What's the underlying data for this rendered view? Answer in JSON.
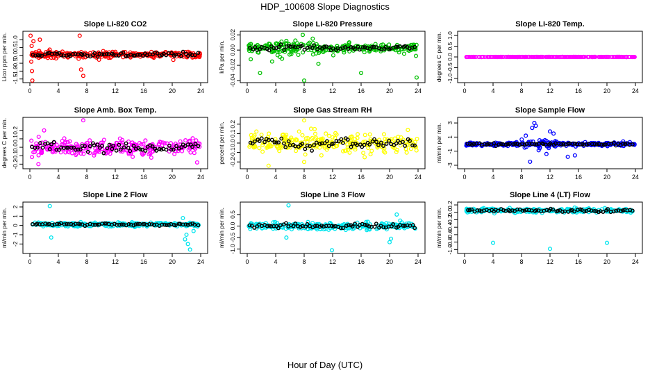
{
  "figure": {
    "title": "HDP_100608  Slope Diagnostics",
    "xlabel": "Hour of Day (UTC)"
  },
  "chart_data": [
    {
      "type": "scatter",
      "title": "Slope Li-820 CO2",
      "ylabel": "Licor ppm per min.",
      "color": "#ff0000",
      "xlim": [
        0,
        24
      ],
      "xticks": [
        0,
        4,
        8,
        12,
        16,
        20,
        24
      ],
      "ylim": [
        -1.6,
        1.4
      ],
      "yticks": [
        -1.5,
        -1.0,
        -0.5,
        0.0,
        0.5,
        1.0
      ],
      "yticklabels": [
        "-1.5",
        "-1.0",
        "-0.5",
        "0.0",
        "0.5",
        "1.0"
      ],
      "spread": 0.16,
      "black_spread": 0.1,
      "center": 0.05,
      "outliers": [
        [
          0.1,
          1.25
        ],
        [
          0.2,
          -0.4
        ],
        [
          0.3,
          -1.0
        ],
        [
          0.35,
          -1.6
        ],
        [
          0.5,
          0.9
        ],
        [
          1.4,
          1.0
        ],
        [
          7.0,
          1.25
        ],
        [
          7.2,
          -0.9
        ],
        [
          7.5,
          -1.3
        ],
        [
          0.25,
          0.6
        ]
      ]
    },
    {
      "type": "scatter",
      "title": "Slope Li-820 Pressure",
      "ylabel": "kPa per min.",
      "color": "#00c000",
      "xlim": [
        0,
        24
      ],
      "xticks": [
        0,
        4,
        8,
        12,
        16,
        20,
        24
      ],
      "ylim": [
        -0.04,
        0.022
      ],
      "yticks": [
        -0.04,
        -0.02,
        0.0,
        0.02
      ],
      "yticklabels": [
        "-0.04",
        "-0.02",
        "0.00",
        "0.02"
      ],
      "spread": 0.005,
      "black_spread": 0.003,
      "center": 0.003,
      "extra_spread_range": [
        4,
        10,
        0.009
      ],
      "outliers": [
        [
          0.5,
          -0.012
        ],
        [
          1.8,
          -0.03
        ],
        [
          3.5,
          -0.015
        ],
        [
          7.8,
          0.02
        ],
        [
          8.0,
          -0.04
        ],
        [
          10.0,
          -0.018
        ],
        [
          16.0,
          -0.03
        ],
        [
          23.8,
          -0.036
        ],
        [
          5.5,
          0.012
        ],
        [
          9.2,
          0.015
        ]
      ]
    },
    {
      "type": "scatter",
      "title": "Slope Li-820 Temp.",
      "ylabel": "degrees C per min.",
      "color": "#ff00ff",
      "xlim": [
        0,
        24
      ],
      "xticks": [
        0,
        4,
        8,
        12,
        16,
        20,
        24
      ],
      "ylim": [
        -1.1,
        1.1
      ],
      "yticks": [
        -1.0,
        -0.5,
        0.0,
        0.5,
        1.0
      ],
      "yticklabels": [
        "-1.0",
        "-0.5",
        "0.0",
        "0.5",
        "1.0"
      ],
      "spread": 0.004,
      "black_spread": 0.0,
      "center": 0.0,
      "outliers": []
    },
    {
      "type": "scatter",
      "title": "Slope Amb. Box Temp.",
      "ylabel": "degrees C per min.",
      "color": "#ff00ff",
      "xlim": [
        0,
        24
      ],
      "xticks": [
        0,
        4,
        8,
        12,
        16,
        20,
        24
      ],
      "ylim": [
        -0.23,
        0.33
      ],
      "yticks": [
        -0.2,
        -0.1,
        0.0,
        0.1,
        0.2
      ],
      "yticklabels": [
        "-0.2",
        "-0.1",
        "0.0",
        "0.1",
        "0.2"
      ],
      "spread": 0.08,
      "black_spread": 0.05,
      "center": 0.0,
      "outliers": [
        [
          7.5,
          0.32
        ],
        [
          1.2,
          -0.2
        ],
        [
          2.0,
          0.2
        ],
        [
          23.5,
          -0.18
        ]
      ]
    },
    {
      "type": "scatter",
      "title": "Slope Gas Stream RH",
      "ylabel": "percent per min.",
      "color": "#ffff00",
      "xlim": [
        0,
        24
      ],
      "xticks": [
        0,
        4,
        8,
        12,
        16,
        20,
        24
      ],
      "ylim": [
        -0.25,
        0.25
      ],
      "yticks": [
        -0.2,
        -0.1,
        0.0,
        0.1,
        0.2
      ],
      "yticklabels": [
        "-0.2",
        "-0.1",
        "0.0",
        "0.1",
        "0.2"
      ],
      "spread": 0.075,
      "black_spread": 0.05,
      "center": 0.0,
      "outliers": [
        [
          3.0,
          -0.24
        ],
        [
          8.0,
          0.24
        ],
        [
          8.0,
          -0.2
        ]
      ]
    },
    {
      "type": "scatter",
      "title": "Slope Sample Flow",
      "ylabel": "ml/min per min.",
      "color": "#0000ff",
      "xlim": [
        0,
        24
      ],
      "xticks": [
        0,
        4,
        8,
        12,
        16,
        20,
        24
      ],
      "ylim": [
        -3.2,
        3.5
      ],
      "yticks": [
        -3,
        -1,
        1,
        3
      ],
      "yticklabels": [
        "-3",
        "-1",
        "1",
        "3"
      ],
      "spread": 0.2,
      "black_spread": 0.12,
      "center": 0.0,
      "extra_spread_range": [
        8,
        13,
        0.5
      ],
      "outliers": [
        [
          9.5,
          2.3
        ],
        [
          9.8,
          3.0
        ],
        [
          10.0,
          2.6
        ],
        [
          9.2,
          -2.5
        ],
        [
          12.0,
          1.8
        ],
        [
          12.5,
          1.5
        ],
        [
          14.5,
          -1.8
        ],
        [
          15.5,
          -1.6
        ],
        [
          8.6,
          1.2
        ],
        [
          11.5,
          -1.4
        ]
      ]
    },
    {
      "type": "scatter",
      "title": "Slope Line 2 Flow",
      "ylabel": "ml/min per min.",
      "color": "#00e5ee",
      "xlim": [
        0,
        24
      ],
      "xticks": [
        0,
        4,
        8,
        12,
        16,
        20,
        24
      ],
      "ylim": [
        -2.8,
        2.3
      ],
      "yticks": [
        -2,
        -1,
        0,
        1,
        2
      ],
      "yticklabels": [
        "-2",
        "-1",
        "0",
        "1",
        "2"
      ],
      "spread": 0.18,
      "black_spread": 0.1,
      "center": 0.1,
      "outliers": [
        [
          2.8,
          2.1
        ],
        [
          3.0,
          -1.3
        ],
        [
          21.8,
          -1.5
        ],
        [
          22.2,
          -2.0
        ],
        [
          22.5,
          -2.6
        ],
        [
          22.0,
          -1.0
        ],
        [
          21.5,
          0.8
        ],
        [
          23.0,
          -0.6
        ]
      ]
    },
    {
      "type": "scatter",
      "title": "Slope Line 3 Flow",
      "ylabel": "ml/min per min.",
      "color": "#00e5ee",
      "xlim": [
        0,
        24
      ],
      "xticks": [
        0,
        4,
        8,
        12,
        16,
        20,
        24
      ],
      "ylim": [
        -1.1,
        0.95
      ],
      "yticks": [
        -1.0,
        -0.5,
        0.0,
        0.5
      ],
      "yticklabels": [
        "-1.0",
        "-0.5",
        "0.0",
        "0.5"
      ],
      "spread": 0.13,
      "black_spread": 0.08,
      "center": 0.0,
      "outliers": [
        [
          5.8,
          0.9
        ],
        [
          11.9,
          -1.05
        ],
        [
          20.0,
          -0.7
        ],
        [
          20.2,
          -0.55
        ],
        [
          5.5,
          -0.5
        ],
        [
          21.0,
          0.5
        ]
      ]
    },
    {
      "type": "scatter",
      "title": "Slope Line 4 (LT) Flow",
      "ylabel": "ml/min per min.",
      "color": "#00e5ee",
      "xlim": [
        0,
        24
      ],
      "xticks": [
        0,
        4,
        8,
        12,
        16,
        20,
        24
      ],
      "ylim": [
        -1.05,
        0.22
      ],
      "yticks": [
        -1.0,
        -0.8,
        -0.6,
        -0.4,
        -0.2,
        0.0,
        0.2
      ],
      "yticklabels": [
        "-1.0",
        "-0.8",
        "-0.6",
        "-0.4",
        "-0.2",
        "0.0",
        "0.2"
      ],
      "spread": 0.045,
      "black_spread": 0.03,
      "center": 0.05,
      "outliers": [
        [
          4.0,
          -0.82
        ],
        [
          12.0,
          -0.98
        ],
        [
          20.0,
          -0.82
        ]
      ]
    }
  ]
}
